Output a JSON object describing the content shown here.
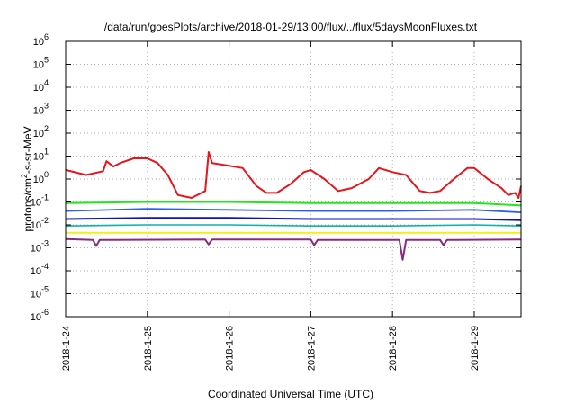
{
  "chart_data": {
    "type": "line",
    "title": "/data/run/goesPlots/archive/2018-01-29/13:00/flux/../flux/5daysMoonFluxes.txt",
    "xlabel": "Coordinated Universal Time (UTC)",
    "ylabel": {
      "base": "protons/cm",
      "sup": "2",
      "rest": "-s-sr-MeV"
    },
    "yscale": "log",
    "ylim": [
      1e-06,
      1000000.0
    ],
    "y_exponents": [
      -6,
      -5,
      -4,
      -3,
      -2,
      -1,
      0,
      1,
      2,
      3,
      4,
      5,
      6
    ],
    "xlim": [
      "2018-01-24 00:00",
      "2018-01-29 13:45"
    ],
    "x_ticks": [
      "2018-1-24",
      "2018-1-25",
      "2018-1-26",
      "2018-1-27",
      "2018-1-28",
      "2018-1-29"
    ],
    "grid": true,
    "legend": "none",
    "series": [
      {
        "color": "#e8141a",
        "width": 2,
        "points": [
          [
            "2018-01-24 00:00",
            2.5
          ],
          [
            "2018-01-24 06:00",
            1.5
          ],
          [
            "2018-01-24 11:00",
            2.2
          ],
          [
            "2018-01-24 12:00",
            6
          ],
          [
            "2018-01-24 14:00",
            3.5
          ],
          [
            "2018-01-24 16:00",
            5
          ],
          [
            "2018-01-24 20:00",
            8
          ],
          [
            "2018-01-25 00:00",
            8
          ],
          [
            "2018-01-25 03:00",
            5
          ],
          [
            "2018-01-25 06:00",
            1.5
          ],
          [
            "2018-01-25 09:00",
            0.2
          ],
          [
            "2018-01-25 13:00",
            0.15
          ],
          [
            "2018-01-25 17:00",
            0.3
          ],
          [
            "2018-01-25 18:00",
            15
          ],
          [
            "2018-01-25 19:00",
            5
          ],
          [
            "2018-01-25 23:00",
            4
          ],
          [
            "2018-01-26 04:00",
            3
          ],
          [
            "2018-01-26 08:00",
            0.5
          ],
          [
            "2018-01-26 11:00",
            0.25
          ],
          [
            "2018-01-26 14:00",
            0.25
          ],
          [
            "2018-01-26 18:00",
            0.6
          ],
          [
            "2018-01-26 22:00",
            2
          ],
          [
            "2018-01-27 00:00",
            2.5
          ],
          [
            "2018-01-27 04:00",
            1
          ],
          [
            "2018-01-27 08:00",
            0.3
          ],
          [
            "2018-01-27 12:00",
            0.4
          ],
          [
            "2018-01-27 17:00",
            1
          ],
          [
            "2018-01-27 20:00",
            3
          ],
          [
            "2018-01-28 00:00",
            2
          ],
          [
            "2018-01-28 04:00",
            1.5
          ],
          [
            "2018-01-28 08:00",
            0.3
          ],
          [
            "2018-01-28 11:00",
            0.25
          ],
          [
            "2018-01-28 14:00",
            0.3
          ],
          [
            "2018-01-28 18:00",
            1
          ],
          [
            "2018-01-28 22:00",
            3
          ],
          [
            "2018-01-29 00:00",
            3
          ],
          [
            "2018-01-29 04:00",
            1
          ],
          [
            "2018-01-29 08:00",
            0.4
          ],
          [
            "2018-01-29 10:00",
            0.2
          ],
          [
            "2018-01-29 12:00",
            0.25
          ],
          [
            "2018-01-29 13:00",
            0.15
          ],
          [
            "2018-01-29 13:45",
            0.5
          ]
        ]
      },
      {
        "color": "#21e81c",
        "width": 2,
        "points": [
          [
            "2018-01-24 00:00",
            0.09
          ],
          [
            "2018-01-25 00:00",
            0.1
          ],
          [
            "2018-01-26 00:00",
            0.1
          ],
          [
            "2018-01-27 00:00",
            0.09
          ],
          [
            "2018-01-28 00:00",
            0.09
          ],
          [
            "2018-01-29 00:00",
            0.09
          ],
          [
            "2018-01-29 13:45",
            0.07
          ]
        ]
      },
      {
        "color": "#2f5cf0",
        "width": 1.8,
        "points": [
          [
            "2018-01-24 00:00",
            0.04
          ],
          [
            "2018-01-25 00:00",
            0.05
          ],
          [
            "2018-01-26 00:00",
            0.045
          ],
          [
            "2018-01-27 00:00",
            0.04
          ],
          [
            "2018-01-28 00:00",
            0.04
          ],
          [
            "2018-01-29 00:00",
            0.045
          ],
          [
            "2018-01-29 13:45",
            0.035
          ]
        ]
      },
      {
        "color": "#0a12c8",
        "width": 2,
        "points": [
          [
            "2018-01-24 00:00",
            0.018
          ],
          [
            "2018-01-25 00:00",
            0.02
          ],
          [
            "2018-01-26 00:00",
            0.02
          ],
          [
            "2018-01-27 00:00",
            0.018
          ],
          [
            "2018-01-28 00:00",
            0.018
          ],
          [
            "2018-01-29 00:00",
            0.018
          ],
          [
            "2018-01-29 13:45",
            0.016
          ]
        ]
      },
      {
        "color": "#11b0a8",
        "width": 1.6,
        "points": [
          [
            "2018-01-24 00:00",
            0.009
          ],
          [
            "2018-01-25 00:00",
            0.01
          ],
          [
            "2018-01-26 00:00",
            0.01
          ],
          [
            "2018-01-27 00:00",
            0.009
          ],
          [
            "2018-01-28 00:00",
            0.009
          ],
          [
            "2018-01-29 00:00",
            0.01
          ],
          [
            "2018-01-29 13:45",
            0.009
          ]
        ]
      },
      {
        "color": "#f2ef1c",
        "width": 2,
        "points": [
          [
            "2018-01-24 00:00",
            0.0045
          ],
          [
            "2018-01-29 13:45",
            0.0045
          ]
        ]
      },
      {
        "color": "#8a2a7a",
        "width": 2,
        "points": [
          [
            "2018-01-24 00:00",
            0.0024
          ],
          [
            "2018-01-24 08:00",
            0.0022
          ],
          [
            "2018-01-24 09:00",
            0.0012
          ],
          [
            "2018-01-24 10:00",
            0.0022
          ],
          [
            "2018-01-25 17:00",
            0.0023
          ],
          [
            "2018-01-25 18:00",
            0.0014
          ],
          [
            "2018-01-25 19:00",
            0.0023
          ],
          [
            "2018-01-27 00:00",
            0.0023
          ],
          [
            "2018-01-27 01:00",
            0.0013
          ],
          [
            "2018-01-27 02:00",
            0.0022
          ],
          [
            "2018-01-28 02:00",
            0.0022
          ],
          [
            "2018-01-28 03:00",
            0.0003
          ],
          [
            "2018-01-28 04:00",
            0.0022
          ],
          [
            "2018-01-28 14:00",
            0.0022
          ],
          [
            "2018-01-28 15:00",
            0.0013
          ],
          [
            "2018-01-28 16:00",
            0.0022
          ],
          [
            "2018-01-29 13:45",
            0.0023
          ]
        ]
      }
    ]
  }
}
